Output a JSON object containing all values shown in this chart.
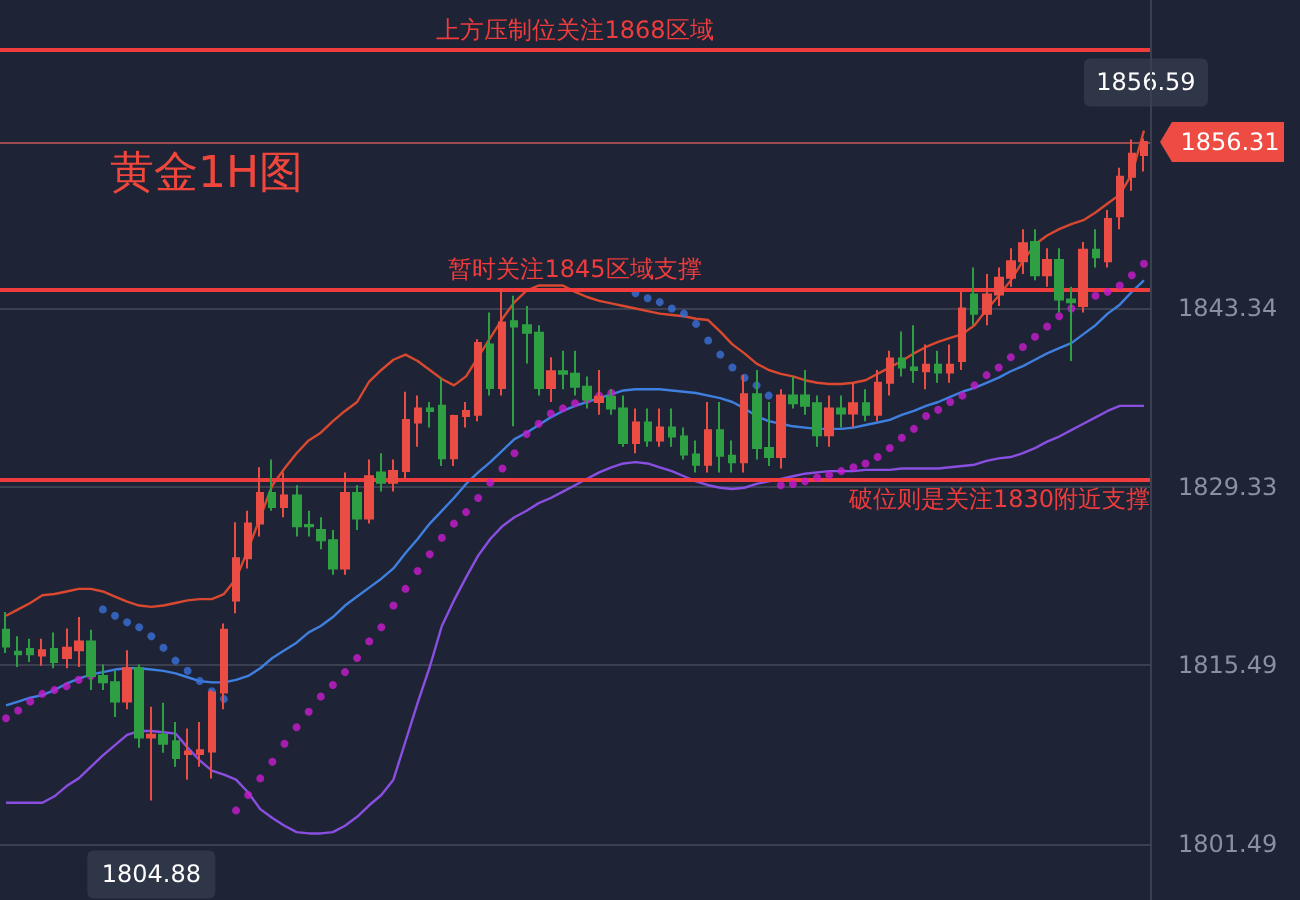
{
  "chart_data": {
    "type": "candlestick",
    "title": "黄金1H图",
    "categories": [
      null,
      null,
      null,
      null,
      null,
      null,
      null,
      null,
      null,
      null,
      null,
      null,
      null,
      null,
      null,
      null,
      null,
      null,
      null,
      null,
      null,
      null,
      null,
      null,
      null,
      null,
      null,
      null,
      null,
      null,
      null,
      null,
      null,
      null,
      null,
      null,
      null,
      null,
      null,
      null,
      null,
      null,
      null,
      null,
      null,
      null,
      null,
      null,
      null,
      null,
      null,
      null,
      null,
      null,
      null,
      null,
      null,
      null,
      null,
      null,
      null,
      null,
      null,
      null,
      null,
      null,
      null,
      null,
      null,
      null,
      null,
      null,
      null,
      null,
      null,
      null,
      null,
      null,
      null,
      null,
      null,
      null,
      null,
      null,
      null,
      null,
      null,
      null,
      null,
      null,
      null,
      null,
      null,
      null,
      null
    ],
    "ohlc": [
      [
        1818.2,
        1819.6,
        1816.4,
        1816.9
      ],
      [
        1816.5,
        1817.7,
        1815.3,
        1816.3
      ],
      [
        1816.7,
        1817.5,
        1815.7,
        1816.3
      ],
      [
        1816.2,
        1817.5,
        1815.4,
        1816.6
      ],
      [
        1816.7,
        1818.0,
        1815.2,
        1815.7
      ],
      [
        1816.0,
        1818.3,
        1815.2,
        1816.8
      ],
      [
        1816.6,
        1819.2,
        1815.3,
        1817.3
      ],
      [
        1817.3,
        1818.2,
        1813.5,
        1814.6
      ],
      [
        1814.6,
        1815.5,
        1813.5,
        1814.1
      ],
      [
        1814.1,
        1815.0,
        1811.4,
        1812.6
      ],
      [
        1812.6,
        1816.6,
        1812.0,
        1815.2
      ],
      [
        1815.2,
        1815.5,
        1809.0,
        1809.8
      ],
      [
        1809.8,
        1812.2,
        1804.88,
        1810.0
      ],
      [
        1810.0,
        1812.5,
        1808.6,
        1809.3
      ],
      [
        1809.5,
        1811.0,
        1807.5,
        1808.2
      ],
      [
        1808.5,
        1810.5,
        1806.5,
        1808.7
      ],
      [
        1808.5,
        1811.0,
        1807.5,
        1808.8
      ],
      [
        1808.7,
        1813.5,
        1806.6,
        1813.3
      ],
      [
        1813.3,
        1818.7,
        1812.0,
        1818.2
      ],
      [
        1820.5,
        1826.6,
        1819.5,
        1823.8
      ],
      [
        1823.8,
        1827.5,
        1823.0,
        1826.5
      ],
      [
        1826.5,
        1830.9,
        1825.5,
        1828.9
      ],
      [
        1828.9,
        1831.5,
        1827.5,
        1827.8
      ],
      [
        1827.8,
        1830.5,
        1827.0,
        1828.7
      ],
      [
        1828.7,
        1829.5,
        1825.5,
        1826.3
      ],
      [
        1826.4,
        1827.5,
        1825.5,
        1826.3
      ],
      [
        1826.0,
        1827.0,
        1824.5,
        1825.2
      ],
      [
        1825.2,
        1826.0,
        1822.5,
        1823.0
      ],
      [
        1823.0,
        1830.5,
        1822.5,
        1828.9
      ],
      [
        1828.9,
        1829.5,
        1826.0,
        1826.9
      ],
      [
        1826.9,
        1831.5,
        1826.5,
        1830.2
      ],
      [
        1830.5,
        1832.0,
        1829.0,
        1829.7
      ],
      [
        1829.7,
        1831.5,
        1829.0,
        1830.6
      ],
      [
        1830.6,
        1836.8,
        1830.0,
        1834.6
      ],
      [
        1834.4,
        1836.5,
        1832.5,
        1835.5
      ],
      [
        1835.5,
        1836.0,
        1834.0,
        1835.3
      ],
      [
        1835.7,
        1837.9,
        1831.0,
        1831.6
      ],
      [
        1831.6,
        1835.0,
        1831.0,
        1834.9
      ],
      [
        1834.9,
        1836.0,
        1834.0,
        1835.3
      ],
      [
        1835.0,
        1840.9,
        1834.5,
        1840.6
      ],
      [
        1840.5,
        1843.0,
        1836.5,
        1837.1
      ],
      [
        1837.1,
        1844.8,
        1836.5,
        1842.2
      ],
      [
        1842.3,
        1844.3,
        1834.1,
        1841.9
      ],
      [
        1842.0,
        1843.5,
        1839.0,
        1841.4
      ],
      [
        1841.4,
        1842.0,
        1836.5,
        1837.1
      ],
      [
        1837.1,
        1839.5,
        1836.0,
        1838.4
      ],
      [
        1838.4,
        1840.0,
        1837.0,
        1838.2
      ],
      [
        1838.2,
        1840.0,
        1836.5,
        1837.2
      ],
      [
        1837.2,
        1838.0,
        1835.5,
        1836.2
      ],
      [
        1836.0,
        1838.5,
        1835.0,
        1836.4
      ],
      [
        1836.4,
        1837.0,
        1835.0,
        1835.5
      ],
      [
        1835.5,
        1836.5,
        1832.5,
        1832.8
      ],
      [
        1832.8,
        1835.5,
        1832.0,
        1834.4
      ],
      [
        1834.4,
        1835.5,
        1832.5,
        1833.0
      ],
      [
        1833.0,
        1835.5,
        1832.5,
        1834.0
      ],
      [
        1834.0,
        1835.5,
        1832.5,
        1833.3
      ],
      [
        1833.3,
        1834.0,
        1831.5,
        1831.9
      ],
      [
        1831.9,
        1833.0,
        1830.5,
        1831.1
      ],
      [
        1831.1,
        1836.0,
        1830.5,
        1833.8
      ],
      [
        1833.8,
        1836.0,
        1830.5,
        1831.8
      ],
      [
        1831.8,
        1833.0,
        1830.5,
        1831.3
      ],
      [
        1831.3,
        1838.1,
        1830.5,
        1836.6
      ],
      [
        1836.6,
        1838.5,
        1831.5,
        1832.4
      ],
      [
        1832.4,
        1836.0,
        1831.0,
        1831.7
      ],
      [
        1831.7,
        1837.0,
        1830.8,
        1836.5
      ],
      [
        1836.5,
        1838.0,
        1835.5,
        1835.9
      ],
      [
        1836.5,
        1838.5,
        1835.0,
        1835.7
      ],
      [
        1835.9,
        1836.5,
        1832.5,
        1833.4
      ],
      [
        1833.4,
        1836.5,
        1832.5,
        1835.5
      ],
      [
        1835.5,
        1836.5,
        1834.0,
        1835.1
      ],
      [
        1835.1,
        1837.5,
        1834.0,
        1835.9
      ],
      [
        1835.9,
        1837.0,
        1834.5,
        1835.0
      ],
      [
        1835.0,
        1838.5,
        1834.5,
        1837.5
      ],
      [
        1837.5,
        1840.0,
        1836.5,
        1839.4
      ],
      [
        1839.4,
        1841.5,
        1838.0,
        1838.7
      ],
      [
        1838.7,
        1842.0,
        1837.5,
        1838.5
      ],
      [
        1838.4,
        1840.5,
        1837.0,
        1838.9
      ],
      [
        1838.9,
        1840.0,
        1837.5,
        1838.3
      ],
      [
        1838.3,
        1840.5,
        1837.5,
        1838.9
      ],
      [
        1839.2,
        1844.6,
        1838.5,
        1843.3
      ],
      [
        1844.4,
        1846.5,
        1842.0,
        1842.9
      ],
      [
        1842.9,
        1846.0,
        1842.0,
        1844.4
      ],
      [
        1844.4,
        1846.5,
        1843.5,
        1845.7
      ],
      [
        1845.7,
        1848.0,
        1845.0,
        1847.0
      ],
      [
        1847.0,
        1849.5,
        1846.0,
        1848.4
      ],
      [
        1848.5,
        1849.5,
        1845.5,
        1845.9
      ],
      [
        1845.9,
        1848.0,
        1845.0,
        1847.1
      ],
      [
        1847.1,
        1848.0,
        1843.0,
        1844.0
      ],
      [
        1844.0,
        1845.0,
        1839.2,
        1843.8
      ],
      [
        1843.5,
        1848.5,
        1843.0,
        1847.9
      ],
      [
        1847.9,
        1849.5,
        1846.5,
        1847.3
      ],
      [
        1847.0,
        1851.0,
        1846.5,
        1850.3
      ],
      [
        1850.5,
        1854.3,
        1849.5,
        1853.6
      ],
      [
        1853.6,
        1856.5,
        1852.5,
        1855.4
      ],
      [
        1855.3,
        1856.59,
        1854.0,
        1856.31
      ]
    ],
    "colors": [
      "#2ea043",
      "#2ea043",
      "#2ea043",
      "#eb4d44",
      "#2ea043",
      "#eb4d44",
      "#eb4d44",
      "#2ea043",
      "#2ea043",
      "#2ea043",
      "#eb4d44",
      "#2ea043",
      "#eb4d44",
      "#2ea043",
      "#2ea043",
      "#eb4d44",
      "#eb4d44",
      "#eb4d44",
      "#eb4d44",
      "#eb4d44",
      "#eb4d44",
      "#eb4d44",
      "#2ea043",
      "#eb4d44",
      "#2ea043",
      "#2ea043",
      "#2ea043",
      "#2ea043",
      "#eb4d44",
      "#2ea043",
      "#eb4d44",
      "#2ea043",
      "#eb4d44",
      "#eb4d44",
      "#eb4d44",
      "#2ea043",
      "#2ea043",
      "#eb4d44",
      "#eb4d44",
      "#eb4d44",
      "#2ea043",
      "#eb4d44",
      "#2ea043",
      "#2ea043",
      "#2ea043",
      "#eb4d44",
      "#2ea043",
      "#2ea043",
      "#2ea043",
      "#eb4d44",
      "#2ea043",
      "#2ea043",
      "#eb4d44",
      "#2ea043",
      "#eb4d44",
      "#2ea043",
      "#2ea043",
      "#2ea043",
      "#eb4d44",
      "#2ea043",
      "#2ea043",
      "#eb4d44",
      "#2ea043",
      "#2ea043",
      "#eb4d44",
      "#2ea043",
      "#2ea043",
      "#2ea043",
      "#eb4d44",
      "#2ea043",
      "#eb4d44",
      "#2ea043",
      "#eb4d44",
      "#eb4d44",
      "#2ea043",
      "#2ea043",
      "#eb4d44",
      "#2ea043",
      "#eb4d44",
      "#eb4d44",
      "#2ea043",
      "#eb4d44",
      "#eb4d44",
      "#eb4d44",
      "#eb4d44",
      "#2ea043",
      "#eb4d44",
      "#2ea043",
      "#2ea043",
      "#eb4d44",
      "#2ea043",
      "#eb4d44",
      "#eb4d44",
      "#eb4d44",
      "#eb4d44"
    ],
    "series": [
      {
        "type": "line",
        "color": "#d9482f",
        "values": [
          1819.3,
          1819.8,
          1820.3,
          1820.9,
          1821.0,
          1821.2,
          1821.4,
          1821.4,
          1821.2,
          1820.8,
          1820.4,
          1820.1,
          1820.0,
          1820.1,
          1820.3,
          1820.5,
          1820.6,
          1820.6,
          1821.0,
          1822.2,
          1824.5,
          1827.0,
          1829.5,
          1830.8,
          1832.0,
          1833.0,
          1833.6,
          1834.5,
          1835.3,
          1836.0,
          1837.6,
          1838.5,
          1839.3,
          1839.7,
          1839.2,
          1838.5,
          1837.8,
          1837.3,
          1838.0,
          1839.5,
          1841.0,
          1842.5,
          1843.8,
          1844.7,
          1845.1,
          1845.1,
          1845.1,
          1844.6,
          1844.2,
          1843.9,
          1843.7,
          1843.5,
          1843.3,
          1843.1,
          1842.9,
          1842.8,
          1842.7,
          1842.5,
          1842.4,
          1841.5,
          1840.5,
          1839.8,
          1839.0,
          1838.5,
          1838.2,
          1838.0,
          1837.7,
          1837.5,
          1837.4,
          1837.4,
          1837.5,
          1837.7,
          1838.2,
          1838.7,
          1839.2,
          1839.8,
          1840.3,
          1840.7,
          1841.0,
          1841.3,
          1842.0,
          1843.2,
          1844.3,
          1845.5,
          1847.0,
          1848.3,
          1849.0,
          1849.5,
          1849.9,
          1850.2,
          1850.8,
          1851.5,
          1852.2,
          1853.8,
          1857.2
        ]
      },
      {
        "type": "line",
        "color": "#3f7fe0",
        "values": [
          1812.3,
          1812.6,
          1812.9,
          1813.1,
          1813.5,
          1814.0,
          1814.4,
          1814.7,
          1814.9,
          1815.1,
          1815.2,
          1815.2,
          1815.1,
          1815.0,
          1814.8,
          1814.5,
          1814.2,
          1814.1,
          1814.1,
          1814.3,
          1814.6,
          1815.2,
          1816.0,
          1816.6,
          1817.2,
          1818.0,
          1818.5,
          1819.2,
          1820.1,
          1820.8,
          1821.5,
          1822.2,
          1823.0,
          1824.2,
          1825.3,
          1826.5,
          1827.5,
          1828.5,
          1829.6,
          1830.5,
          1831.3,
          1832.2,
          1833.1,
          1833.6,
          1834.2,
          1834.8,
          1835.3,
          1835.7,
          1836.0,
          1836.3,
          1836.6,
          1836.9,
          1837.0,
          1837.0,
          1837.0,
          1836.9,
          1836.8,
          1836.7,
          1836.5,
          1836.3,
          1836.0,
          1835.5,
          1834.9,
          1834.5,
          1834.3,
          1834.1,
          1834.0,
          1833.9,
          1833.9,
          1833.9,
          1834.0,
          1834.2,
          1834.4,
          1834.6,
          1835.0,
          1835.3,
          1835.7,
          1836.0,
          1836.4,
          1836.8,
          1837.1,
          1837.5,
          1837.9,
          1838.4,
          1838.8,
          1839.3,
          1839.8,
          1840.2,
          1840.6,
          1841.3,
          1842.0,
          1842.9,
          1843.6,
          1844.6,
          1845.5
        ]
      },
      {
        "type": "line",
        "color": "#8a4fe0",
        "values": [
          1804.7,
          1804.7,
          1804.7,
          1804.7,
          1805.2,
          1806.0,
          1806.6,
          1807.5,
          1808.4,
          1809.2,
          1810.0,
          1810.3,
          1810.3,
          1810.2,
          1810.1,
          1809.0,
          1808.0,
          1807.2,
          1806.9,
          1806.5,
          1805.5,
          1804.2,
          1803.5,
          1802.9,
          1802.4,
          1802.3,
          1802.3,
          1802.4,
          1802.9,
          1803.6,
          1804.5,
          1805.3,
          1806.5,
          1809.5,
          1812.5,
          1815.3,
          1818.5,
          1820.5,
          1822.3,
          1824.0,
          1825.3,
          1826.3,
          1827.0,
          1827.5,
          1828.1,
          1828.5,
          1829.0,
          1829.5,
          1830.0,
          1830.5,
          1830.9,
          1831.2,
          1831.3,
          1831.2,
          1830.9,
          1830.6,
          1830.2,
          1829.8,
          1829.5,
          1829.3,
          1829.2,
          1829.3,
          1829.6,
          1829.8,
          1830.0,
          1830.2,
          1830.4,
          1830.5,
          1830.6,
          1830.6,
          1830.6,
          1830.7,
          1830.7,
          1830.7,
          1830.8,
          1830.8,
          1830.8,
          1830.8,
          1830.9,
          1831.0,
          1831.1,
          1831.4,
          1831.6,
          1831.7,
          1832.0,
          1832.4,
          1832.9,
          1833.3,
          1833.8,
          1834.3,
          1834.8,
          1835.3,
          1835.7,
          1835.7,
          1835.7
        ]
      },
      {
        "type": "scatter",
        "color": "#3a6fd8",
        "values": [
          null,
          null,
          null,
          null,
          null,
          null,
          null,
          null,
          1819.8,
          1819.3,
          1818.8,
          1818.4,
          1817.7,
          1816.8,
          1815.8,
          1815.0,
          1814.2,
          1813.4,
          1812.8,
          null,
          null,
          null,
          null,
          null,
          null,
          null,
          null,
          null,
          null,
          null,
          null,
          null,
          null,
          null,
          null,
          null,
          null,
          null,
          null,
          null,
          null,
          null,
          null,
          null,
          null,
          null,
          null,
          null,
          null,
          null,
          null,
          null,
          1844.5,
          1844.1,
          1843.8,
          1843.3,
          1842.9,
          1842.1,
          1840.8,
          1839.7,
          1838.7,
          1837.9,
          1837.3,
          1836.5,
          null,
          null,
          null,
          null,
          null,
          null,
          null,
          null,
          null,
          null,
          null,
          null,
          null,
          null,
          null,
          null,
          null,
          null,
          null,
          null,
          null,
          null,
          null,
          null,
          null,
          null,
          null,
          null,
          null,
          null,
          null
        ]
      },
      {
        "type": "scatter",
        "color": "#c81ccf",
        "values": [
          1811.3,
          1811.9,
          1812.6,
          1813.2,
          1813.5,
          1813.8,
          1814.3,
          1814.6,
          null,
          null,
          null,
          null,
          null,
          null,
          null,
          null,
          null,
          null,
          null,
          1804.1,
          1805.3,
          1806.6,
          1807.9,
          1809.3,
          1810.6,
          1811.8,
          1813.0,
          1813.9,
          1814.9,
          1816.0,
          1817.3,
          1818.4,
          1820.1,
          1821.4,
          1822.8,
          1824.1,
          1825.4,
          1826.5,
          1827.4,
          1828.5,
          1829.7,
          1830.8,
          1832.0,
          1833.5,
          1834.3,
          1835.1,
          1835.5,
          1835.9,
          1836.2,
          1836.5,
          1836.7,
          null,
          null,
          null,
          null,
          null,
          null,
          null,
          null,
          null,
          null,
          null,
          null,
          null,
          1829.5,
          1829.6,
          1829.8,
          1830.1,
          1830.3,
          1830.6,
          1830.9,
          1831.2,
          1831.7,
          1832.4,
          1833.2,
          1833.9,
          1834.9,
          1835.4,
          1836.0,
          1836.5,
          1837.3,
          1838.1,
          1838.7,
          1839.5,
          1840.3,
          1841.1,
          1841.9,
          1842.7,
          1843.3,
          null,
          1844.3,
          1844.6,
          1845.1,
          1845.9,
          1846.8
        ]
      }
    ],
    "ylim": [
      1797.1,
      1867.4
    ],
    "yticks": [
      1801.49,
      1815.49,
      1829.33,
      1843.34
    ],
    "grid": "y",
    "tick_labels": "y",
    "ref_lines": [
      {
        "axis": "y",
        "value": 1863.5,
        "label": "上方压制位关注1868区域",
        "color": "#f03c3c"
      },
      {
        "axis": "y",
        "value": 1844.8,
        "label": "暂时关注1845区域支撑",
        "color": "#f03c3c"
      },
      {
        "axis": "y",
        "value": 1830.0,
        "label": "破位则是关注1830附近支撑",
        "color": "#f03c3c"
      },
      {
        "axis": "y",
        "value": 1856.31,
        "color": "#9c4a4f"
      }
    ],
    "annotations": [
      {
        "text": "1856.59",
        "y": 1856.59
      },
      {
        "text": "1804.88",
        "y": 1804.88
      },
      "1856.31"
    ]
  }
}
